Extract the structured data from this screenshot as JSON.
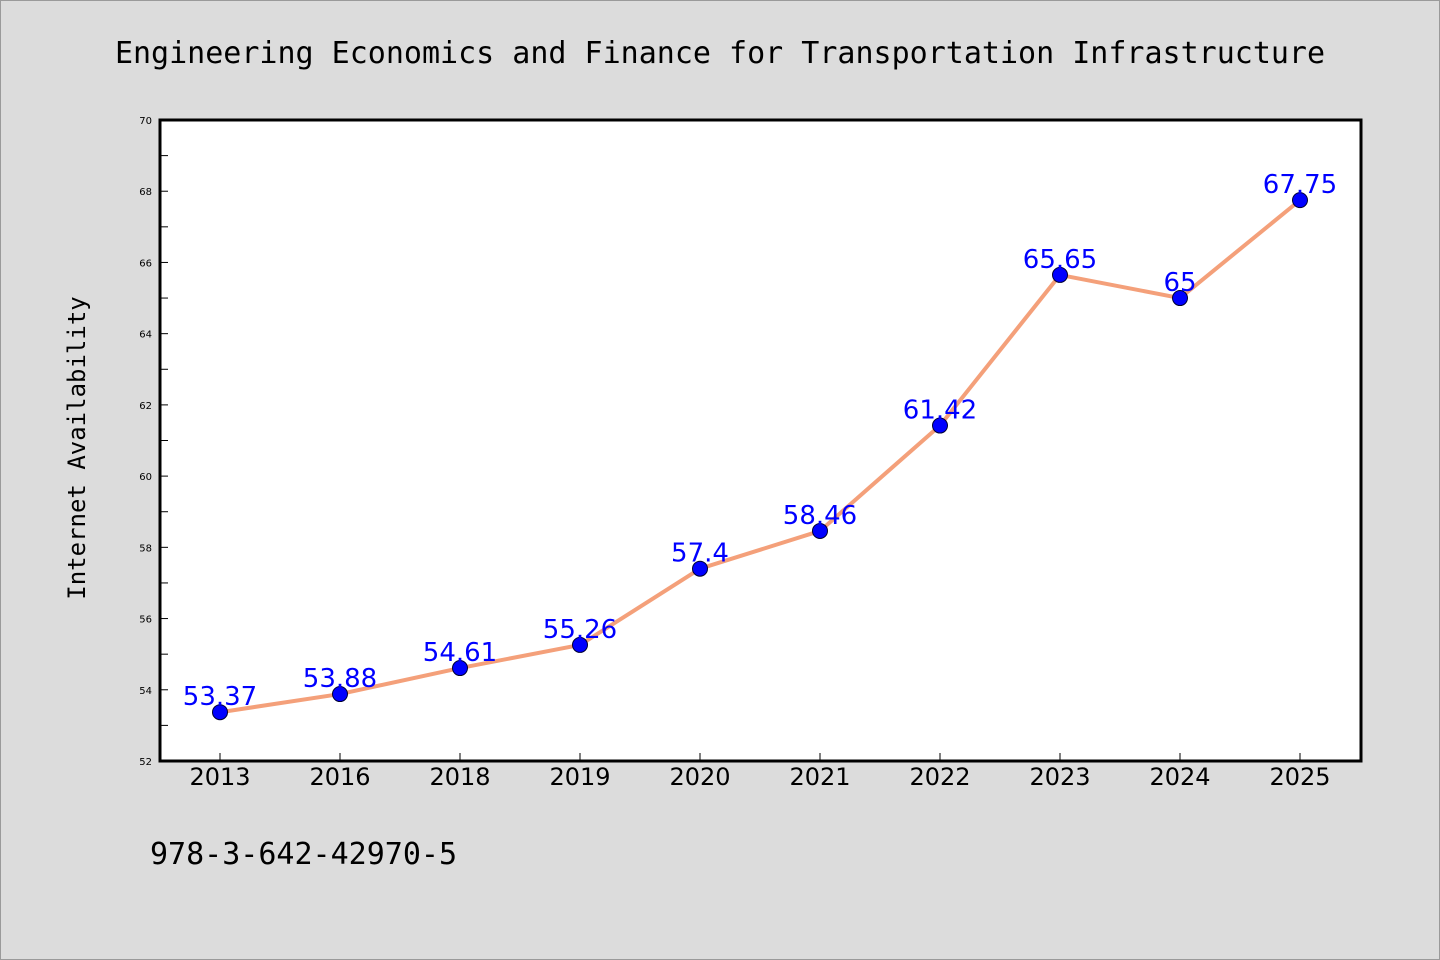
{
  "chart_data": {
    "type": "line",
    "title": "Engineering Economics and Finance for Transportation Infrastructure",
    "xlabel": "",
    "ylabel": "Internet Availability",
    "categories": [
      "2013",
      "2016",
      "2018",
      "2019",
      "2020",
      "2021",
      "2022",
      "2023",
      "2024",
      "2025"
    ],
    "series": [
      {
        "values": [
          53.37,
          53.88,
          54.61,
          55.26,
          57.4,
          58.46,
          61.42,
          65.65,
          65,
          67.75
        ],
        "labels": [
          "53.37",
          "53.88",
          "54.61",
          "55.26",
          "57.4",
          "58.46",
          "61.42",
          "65.65",
          "65",
          "67.75"
        ]
      }
    ],
    "ylim": [
      52,
      70
    ],
    "yticks": [
      "52",
      "54",
      "56",
      "58",
      "60",
      "62",
      "64",
      "66",
      "68",
      "70"
    ],
    "grid": false,
    "legend": "none",
    "colors": {
      "line": "#f4a07a",
      "marker": "#0000ff",
      "data_label": "#0000ff",
      "background": "#dcdcdc",
      "plot_area": "#ffffff"
    }
  },
  "footnote": "978-3-642-42970-5"
}
